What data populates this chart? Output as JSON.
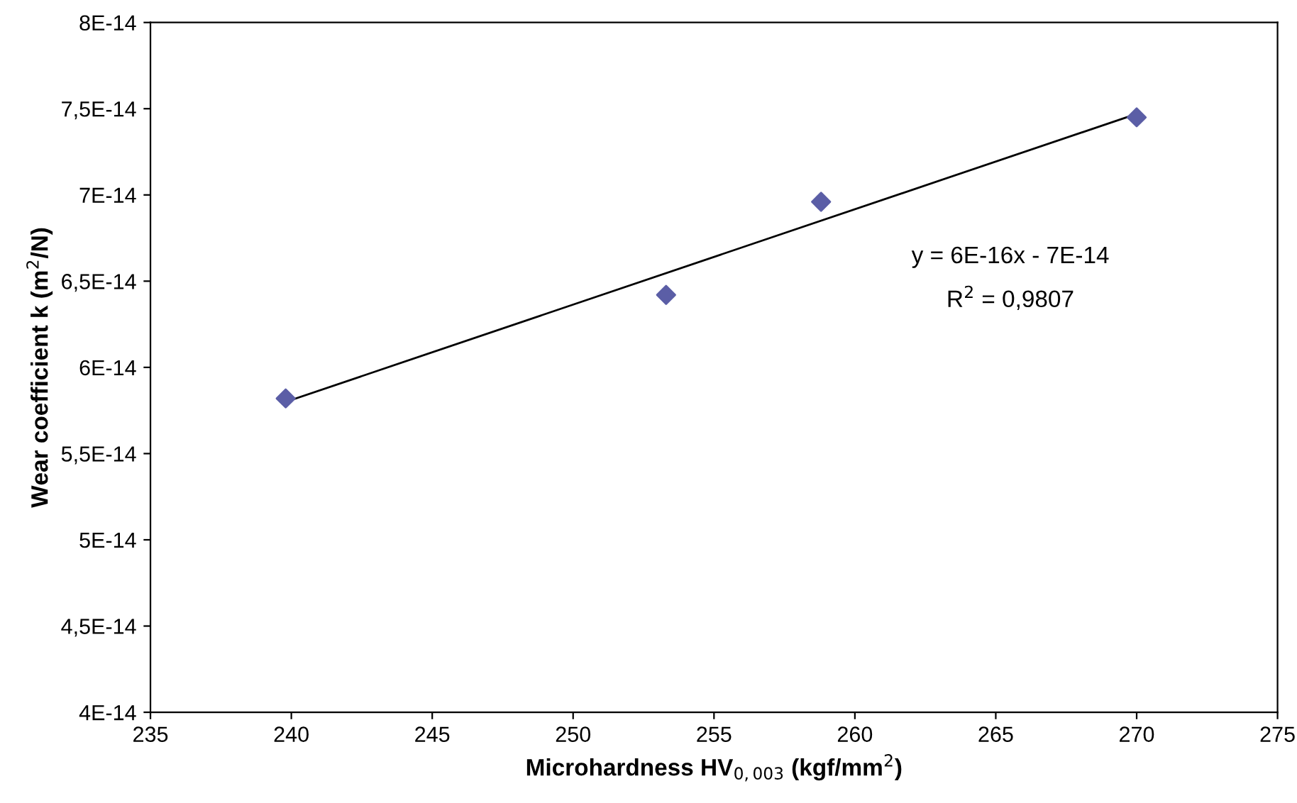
{
  "chart_data": {
    "type": "scatter",
    "xlabel": "Microhardness HV$_{0,003}$ (kgf/mm$^{2}$)",
    "ylabel": "Wear coefficient k (m$^{2}$/N)",
    "x": [
      239.8,
      253.3,
      258.8,
      270.0
    ],
    "series": [
      {
        "color": "#5b5ea6",
        "marker": "diamond",
        "values": [
          5.82e-14,
          6.42e-14,
          6.96e-14,
          7.45e-14
        ]
      },
      {
        "type": "line",
        "color": "#000000",
        "marker": "none",
        "line_style": "solid",
        "x": [
          239.8,
          270.0
        ],
        "values": [
          5.8e-14,
          7.47e-14
        ]
      }
    ],
    "annotations": [
      "y = 6E-16x - 7E-14",
      "R$^{2}$ = 0,9807"
    ],
    "xlim": [
      235,
      275
    ],
    "xticks": [
      235,
      240,
      245,
      250,
      255,
      260,
      265,
      270,
      275
    ],
    "ylim": [
      4e-14,
      8e-14
    ],
    "yticks": [
      {
        "value": 4e-14,
        "label": "4E-14"
      },
      {
        "value": 4.5e-14,
        "label": "4,5E-14"
      },
      {
        "value": 5e-14,
        "label": "5E-14"
      },
      {
        "value": 5.5e-14,
        "label": "5,5E-14"
      },
      {
        "value": 6e-14,
        "label": "6E-14"
      },
      {
        "value": 6.5e-14,
        "label": "6,5E-14"
      },
      {
        "value": 7e-14,
        "label": "7E-14"
      },
      {
        "value": 7.5e-14,
        "label": "7,5E-14"
      },
      {
        "value": 8e-14,
        "label": "8E-14"
      }
    ],
    "grid": false
  }
}
